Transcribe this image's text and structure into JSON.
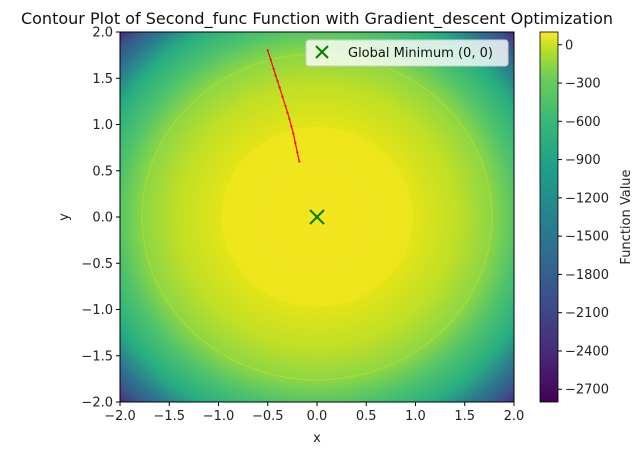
{
  "chart_data": {
    "type": "contour",
    "title": "Contour Plot of Second_func Function with Gradient_descent Optimization",
    "xlabel": "x",
    "ylabel": "y",
    "xlim": [
      -2.0,
      2.0
    ],
    "ylim": [
      -2.0,
      2.0
    ],
    "xticks": [
      "−2.0",
      "−1.5",
      "−1.0",
      "−0.5",
      "0.0",
      "0.5",
      "1.0",
      "1.5",
      "2.0"
    ],
    "xtick_values": [
      -2.0,
      -1.5,
      -1.0,
      -0.5,
      0.0,
      0.5,
      1.0,
      1.5,
      2.0
    ],
    "yticks": [
      "−2.0",
      "−1.5",
      "−1.0",
      "−0.5",
      "0.0",
      "0.5",
      "1.0",
      "1.5",
      "2.0"
    ],
    "ytick_values": [
      -2.0,
      -1.5,
      -1.0,
      -0.5,
      0.0,
      0.5,
      1.0,
      1.5,
      2.0
    ],
    "colorbar": {
      "label": "Function Value",
      "range": [
        -2800,
        100
      ],
      "ticks": [
        "0",
        "−300",
        "−600",
        "−900",
        "−1200",
        "−1500",
        "−1800",
        "−2100",
        "−2400",
        "−2700"
      ],
      "tick_values": [
        0,
        -300,
        -600,
        -900,
        -1200,
        -1500,
        -1800,
        -2100,
        -2400,
        -2700
      ],
      "colormap": "viridis"
    },
    "marker": {
      "name": "Global Minimum (0, 0)",
      "x": 0.0,
      "y": 0.0,
      "symbol": "x",
      "color": "#008000"
    },
    "path": {
      "color": "#ff0000",
      "points": [
        [
          -0.5,
          1.8
        ],
        [
          -0.47,
          1.7
        ],
        [
          -0.44,
          1.6
        ],
        [
          -0.42,
          1.53
        ],
        [
          -0.4,
          1.47
        ],
        [
          -0.38,
          1.4
        ],
        [
          -0.35,
          1.3
        ],
        [
          -0.32,
          1.2
        ],
        [
          -0.3,
          1.13
        ],
        [
          -0.28,
          1.06
        ],
        [
          -0.26,
          0.98
        ],
        [
          -0.24,
          0.9
        ],
        [
          -0.22,
          0.8
        ],
        [
          -0.2,
          0.7
        ],
        [
          -0.18,
          0.6
        ]
      ]
    },
    "legend_position": "upper-right",
    "grid": false
  }
}
